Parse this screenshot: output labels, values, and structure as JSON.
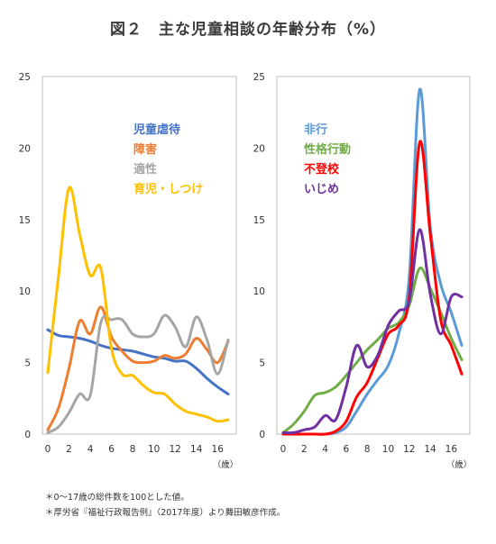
{
  "title": "図２　主な児童相談の年齢分布（%）",
  "notes": [
    "＊0～17歳の総件数を100とした値。",
    "＊厚労省『福祉行政報告例』（2017年度）より舞田敏彦作成。"
  ],
  "chart_data": [
    {
      "type": "line",
      "x": [
        0,
        1,
        2,
        3,
        4,
        5,
        6,
        7,
        8,
        9,
        10,
        11,
        12,
        13,
        14,
        15,
        16,
        17
      ],
      "x_ticks": [
        "0",
        "2",
        "4",
        "6",
        "8",
        "10",
        "12",
        "14",
        "16"
      ],
      "x_unit": "（歳）",
      "ylim": [
        0,
        25
      ],
      "y_ticks": [
        "0",
        "5",
        "10",
        "15",
        "20",
        "25"
      ],
      "grid": false,
      "legend_position": "top-center",
      "series": [
        {
          "name": "児童虐待",
          "color": "#4472c4",
          "values": [
            7.3,
            6.9,
            6.8,
            6.7,
            6.5,
            6.2,
            6.0,
            5.9,
            5.8,
            5.6,
            5.4,
            5.3,
            5.1,
            5.1,
            4.6,
            3.9,
            3.3,
            2.8
          ]
        },
        {
          "name": "障害",
          "color": "#ed7d31",
          "values": [
            0.3,
            1.8,
            4.6,
            7.9,
            7.0,
            8.9,
            6.8,
            5.8,
            5.1,
            5.0,
            5.1,
            5.5,
            5.3,
            5.6,
            6.7,
            5.9,
            5.0,
            6.5
          ]
        },
        {
          "name": "適性",
          "color": "#a5a5a5",
          "values": [
            0.1,
            0.5,
            1.5,
            2.8,
            2.7,
            7.8,
            8.0,
            8.0,
            7.0,
            6.8,
            7.0,
            8.3,
            7.5,
            6.1,
            8.2,
            6.6,
            4.2,
            6.6
          ]
        },
        {
          "name": "育児・しつけ",
          "color": "#ffc000",
          "values": [
            4.3,
            11.0,
            17.2,
            14.0,
            11.1,
            11.6,
            6.0,
            4.2,
            4.1,
            3.4,
            2.9,
            2.8,
            2.1,
            1.6,
            1.4,
            1.2,
            0.9,
            1.0
          ]
        }
      ]
    },
    {
      "type": "line",
      "x": [
        0,
        1,
        2,
        3,
        4,
        5,
        6,
        7,
        8,
        9,
        10,
        11,
        12,
        13,
        14,
        15,
        16,
        17
      ],
      "x_ticks": [
        "0",
        "2",
        "4",
        "6",
        "8",
        "10",
        "12",
        "14",
        "16"
      ],
      "x_unit": "（歳）",
      "ylim": [
        0,
        25
      ],
      "y_ticks": [
        "0",
        "5",
        "10",
        "15",
        "20",
        "25"
      ],
      "grid": false,
      "legend_position": "top-left",
      "series": [
        {
          "name": "非行",
          "color": "#5b9bd5",
          "values": [
            0,
            0,
            0,
            0,
            0,
            0.1,
            0.5,
            1.6,
            2.8,
            3.8,
            4.8,
            7.0,
            11.0,
            24.1,
            14.5,
            10.5,
            8.5,
            6.2
          ]
        },
        {
          "name": "性格行動",
          "color": "#70ad47",
          "values": [
            0.1,
            0.7,
            1.6,
            2.7,
            2.9,
            3.3,
            4.1,
            5.0,
            5.9,
            6.6,
            7.4,
            7.8,
            9.0,
            11.6,
            10.2,
            8.5,
            6.7,
            5.2
          ]
        },
        {
          "name": "不登校",
          "color": "#ff0000",
          "values": [
            0,
            0,
            0,
            0,
            0,
            0.2,
            0.9,
            2.6,
            3.6,
            5.3,
            7.0,
            7.6,
            9.6,
            20.4,
            14.0,
            8.0,
            6.2,
            4.2
          ]
        },
        {
          "name": "いじめ",
          "color": "#7030a0",
          "values": [
            0.1,
            0.1,
            0.3,
            0.5,
            1.3,
            1.0,
            3.3,
            6.2,
            4.7,
            5.5,
            7.6,
            8.6,
            9.3,
            14.3,
            9.8,
            7.0,
            9.6,
            9.6
          ]
        }
      ]
    }
  ]
}
